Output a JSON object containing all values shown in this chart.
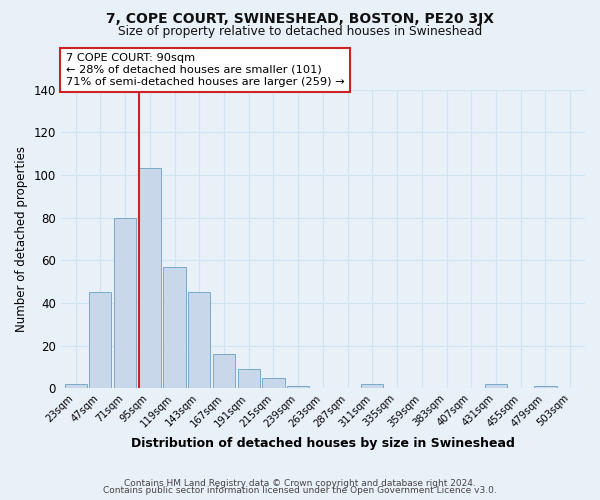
{
  "title": "7, COPE COURT, SWINESHEAD, BOSTON, PE20 3JX",
  "subtitle": "Size of property relative to detached houses in Swineshead",
  "xlabel": "Distribution of detached houses by size in Swineshead",
  "ylabel": "Number of detached properties",
  "bin_labels": [
    "23sqm",
    "47sqm",
    "71sqm",
    "95sqm",
    "119sqm",
    "143sqm",
    "167sqm",
    "191sqm",
    "215sqm",
    "239sqm",
    "263sqm",
    "287sqm",
    "311sqm",
    "335sqm",
    "359sqm",
    "383sqm",
    "407sqm",
    "431sqm",
    "455sqm",
    "479sqm",
    "503sqm"
  ],
  "bar_values": [
    2,
    45,
    80,
    103,
    57,
    45,
    16,
    9,
    5,
    1,
    0,
    0,
    2,
    0,
    0,
    0,
    0,
    2,
    0,
    1,
    0
  ],
  "bar_color": "#c8d8ea",
  "bar_edge_color": "#7aaac8",
  "marker_bin_index": 3,
  "marker_label": "7 COPE COURT: 90sqm",
  "annotation_line1": "← 28% of detached houses are smaller (101)",
  "annotation_line2": "71% of semi-detached houses are larger (259) →",
  "annotation_box_facecolor": "#ffffff",
  "annotation_box_edgecolor": "#cc2222",
  "marker_line_color": "#cc2222",
  "ylim": [
    0,
    140
  ],
  "yticks": [
    0,
    20,
    40,
    60,
    80,
    100,
    120,
    140
  ],
  "grid_color": "#d0e4f0",
  "background_color": "#e8f0f8",
  "footer1": "Contains HM Land Registry data © Crown copyright and database right 2024.",
  "footer2": "Contains public sector information licensed under the Open Government Licence v3.0."
}
